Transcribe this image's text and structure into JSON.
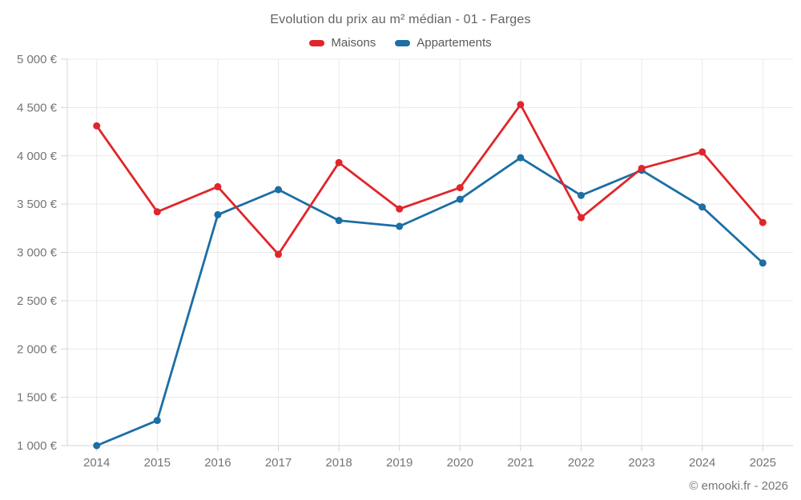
{
  "title": "Evolution du prix au m² médian - 01 - Farges",
  "footer": "© emooki.fr - 2026",
  "colors": {
    "maisons": "#e0262a",
    "appartements": "#1c6ea5",
    "grid": "#e9e9e9",
    "axis": "#d4d4d4",
    "tick_text": "#757575"
  },
  "legend": {
    "items": [
      {
        "label": "Maisons",
        "color": "#e0262a"
      },
      {
        "label": "Appartements",
        "color": "#1c6ea5"
      }
    ]
  },
  "chart_data": {
    "type": "line",
    "title": "Evolution du prix au m² médian - 01 - Farges",
    "xlabel": "",
    "ylabel": "",
    "x": [
      2014,
      2015,
      2016,
      2017,
      2018,
      2019,
      2020,
      2021,
      2022,
      2023,
      2024,
      2025
    ],
    "x_tick_labels": [
      "2014",
      "2015",
      "2016",
      "2017",
      "2018",
      "2019",
      "2020",
      "2021",
      "2022",
      "2023",
      "2024",
      "2025"
    ],
    "ylim": [
      1000,
      5000
    ],
    "y_tick_step": 500,
    "y_ticks": [
      1000,
      1500,
      2000,
      2500,
      3000,
      3500,
      4000,
      4500,
      5000
    ],
    "y_tick_labels": [
      "1 000 €",
      "1 500 €",
      "2 000 €",
      "2 500 €",
      "3 000 €",
      "3 500 €",
      "4 000 €",
      "4 500 €",
      "5 000 €"
    ],
    "grid": true,
    "legend_position": "top",
    "series": [
      {
        "name": "Maisons",
        "color": "#e0262a",
        "values": [
          4310,
          3420,
          3680,
          2980,
          3930,
          3450,
          3670,
          4530,
          3360,
          3870,
          4040,
          3310
        ]
      },
      {
        "name": "Appartements",
        "color": "#1c6ea5",
        "values": [
          1000,
          1260,
          3390,
          3650,
          3330,
          3270,
          3550,
          3980,
          3590,
          3850,
          3470,
          2890
        ]
      }
    ]
  }
}
